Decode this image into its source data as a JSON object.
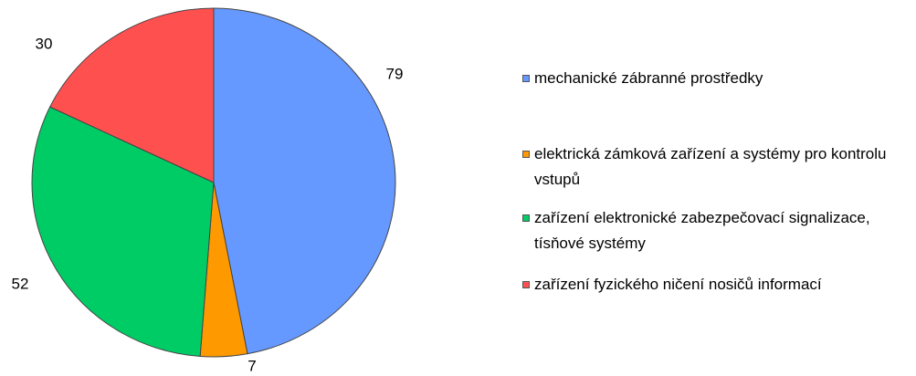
{
  "chart_data": {
    "type": "pie",
    "categories": [
      "mechanické zábranné prostředky",
      "elektrická zámková zařízení a systémy pro kontrolu vstupů",
      "zařízení elektronické zabezpečovací signalizace, tísňové systémy",
      "zařízení fyzického ničení nosičů informací"
    ],
    "values": [
      79,
      7,
      52,
      30
    ],
    "colors": [
      "#6699ff",
      "#ff9900",
      "#00cc66",
      "#ff5050"
    ],
    "legend": "right"
  }
}
